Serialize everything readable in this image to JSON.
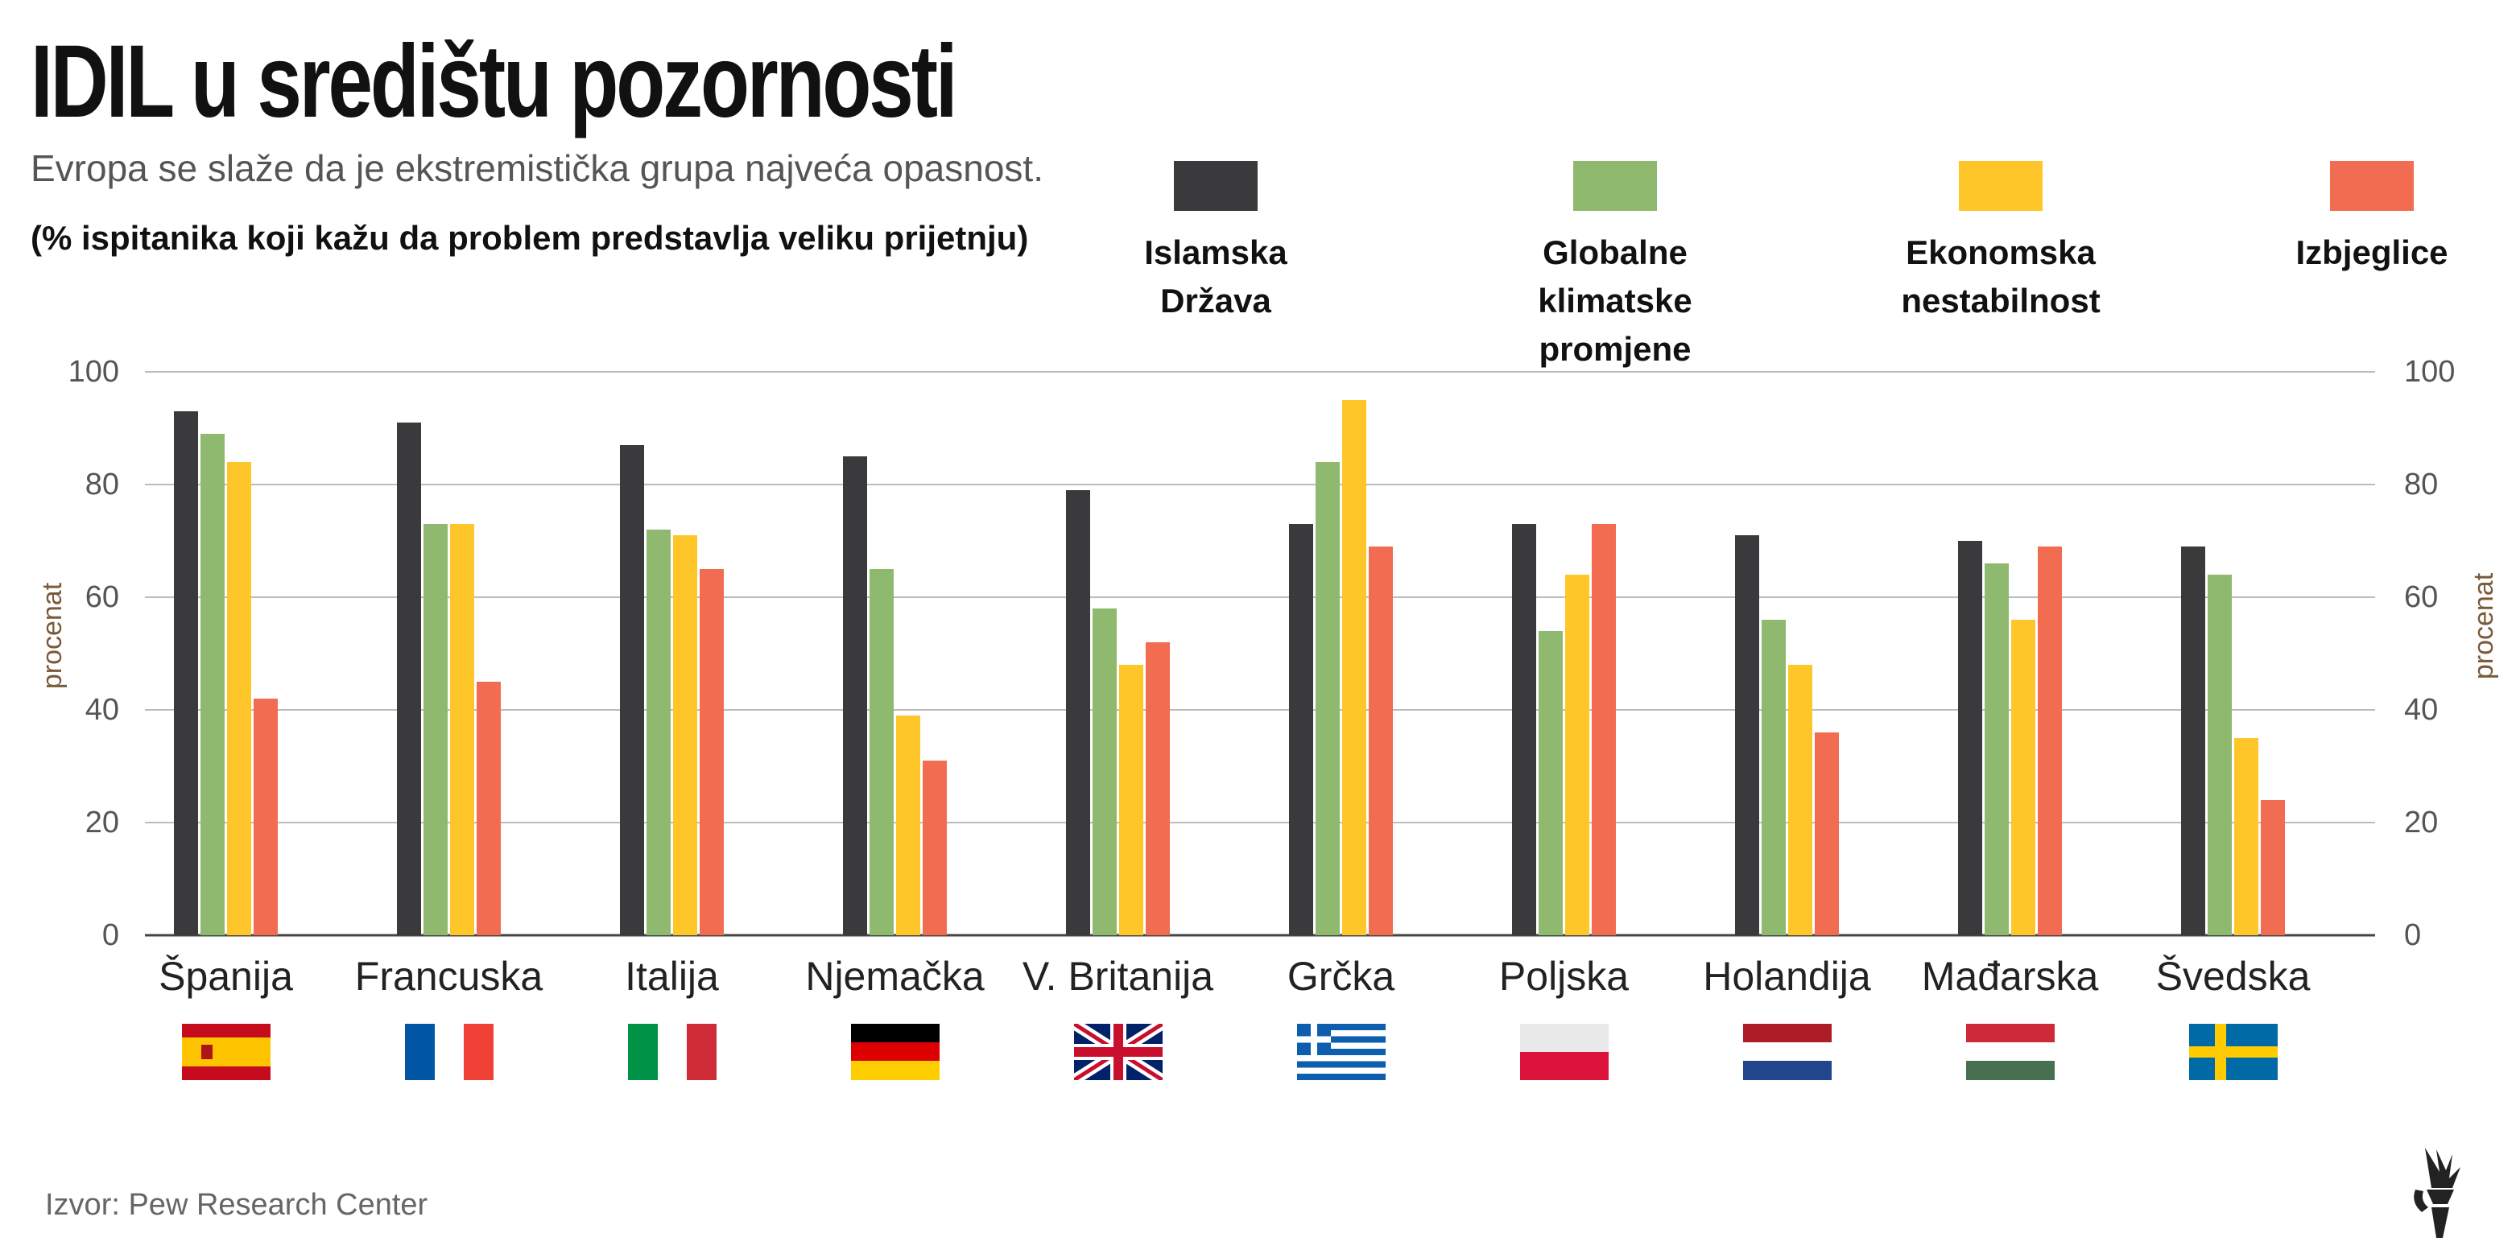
{
  "header": {
    "title": "IDIL u središtu pozornosti",
    "subtitle": "Evropa se slaže da je ekstremistička grupa najveća opasnost.",
    "note": "(% ispitanika koji kažu da problem predstavlja veliku prijetnju)"
  },
  "legend": [
    {
      "label": "Islamska Država",
      "color": "#3a3a3c"
    },
    {
      "label": "Globalne klimatske promjene",
      "color": "#8fb96e"
    },
    {
      "label": "Ekonomska nestabilnost",
      "color": "#ffc629"
    },
    {
      "label": "Izbjeglice",
      "color": "#f26c52"
    }
  ],
  "source": "Izvor: Pew Research Center",
  "logo_icon": "torch-hand-icon",
  "chart_data": {
    "type": "bar",
    "title": "IDIL u središtu pozornosti",
    "ylabel": "procenat",
    "xlabel": "",
    "ylim": [
      0,
      100
    ],
    "yticks": [
      0,
      20,
      40,
      60,
      80,
      100
    ],
    "grid": true,
    "categories": [
      "Španija",
      "Francuska",
      "Italija",
      "Njemačka",
      "V. Britanija",
      "Grčka",
      "Poljska",
      "Holandija",
      "Mađarska",
      "Švedska"
    ],
    "series": [
      {
        "name": "Islamska Država",
        "color": "#3a3a3c",
        "values": [
          93,
          91,
          87,
          85,
          79,
          73,
          73,
          71,
          70,
          69
        ]
      },
      {
        "name": "Globalne klimatske promjene",
        "color": "#8fb96e",
        "values": [
          89,
          73,
          72,
          65,
          58,
          84,
          54,
          56,
          66,
          64
        ]
      },
      {
        "name": "Ekonomska nestabilnost",
        "color": "#ffc629",
        "values": [
          84,
          73,
          71,
          39,
          48,
          95,
          64,
          48,
          56,
          35
        ]
      },
      {
        "name": "Izbjeglice",
        "color": "#f26c52",
        "values": [
          42,
          45,
          65,
          31,
          52,
          69,
          73,
          36,
          69,
          24
        ]
      }
    ]
  }
}
